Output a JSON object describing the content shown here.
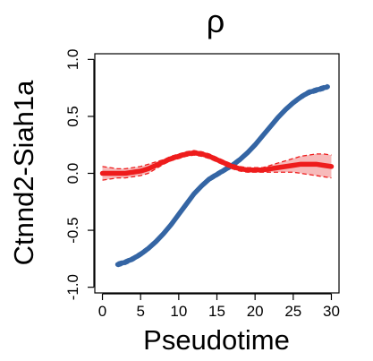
{
  "chart_data": {
    "type": "line",
    "title": "ρ",
    "xlabel": "Pseudotime",
    "ylabel": "Ctnnd2-Siah1a",
    "xlim": [
      -1,
      31
    ],
    "ylim": [
      -1.05,
      1.05
    ],
    "xticks": [
      "0",
      "5",
      "10",
      "15",
      "20",
      "25",
      "30"
    ],
    "xtick_values": [
      0,
      5,
      10,
      15,
      20,
      25,
      30
    ],
    "yticks": [
      "-1.0",
      "-0.5",
      "0.0",
      "0.5",
      "1.0"
    ],
    "ytick_values": [
      -1.0,
      -0.5,
      0.0,
      0.5,
      1.0
    ],
    "grid": false,
    "series": [
      {
        "color": "#3465a4",
        "band_color": "#8fb4d9",
        "x": [
          2,
          3,
          4,
          5,
          6,
          7,
          8,
          9,
          10,
          11,
          12,
          13,
          14,
          15,
          16,
          17,
          18,
          19,
          20,
          21,
          22,
          23,
          24,
          25,
          26,
          27,
          28,
          29,
          29.5
        ],
        "y": [
          -0.8,
          -0.78,
          -0.75,
          -0.71,
          -0.66,
          -0.6,
          -0.53,
          -0.45,
          -0.36,
          -0.27,
          -0.18,
          -0.11,
          -0.05,
          -0.01,
          0.03,
          0.07,
          0.12,
          0.18,
          0.25,
          0.33,
          0.41,
          0.49,
          0.56,
          0.62,
          0.67,
          0.71,
          0.73,
          0.75,
          0.76
        ],
        "lower": [
          -0.82,
          -0.8,
          -0.77,
          -0.73,
          -0.68,
          -0.62,
          -0.55,
          -0.47,
          -0.38,
          -0.29,
          -0.2,
          -0.13,
          -0.07,
          -0.03,
          0.01,
          0.05,
          0.1,
          0.16,
          0.23,
          0.31,
          0.39,
          0.47,
          0.54,
          0.6,
          0.65,
          0.69,
          0.71,
          0.73,
          0.74
        ],
        "upper": [
          -0.78,
          -0.76,
          -0.73,
          -0.69,
          -0.64,
          -0.58,
          -0.51,
          -0.43,
          -0.34,
          -0.25,
          -0.16,
          -0.09,
          -0.03,
          0.01,
          0.05,
          0.09,
          0.14,
          0.2,
          0.27,
          0.35,
          0.43,
          0.51,
          0.58,
          0.64,
          0.69,
          0.73,
          0.75,
          0.77,
          0.78
        ]
      },
      {
        "color": "#ee1c1c",
        "band_color": "#f4a3a3",
        "x": [
          0,
          1,
          2,
          3,
          4,
          5,
          6,
          7,
          8,
          9,
          10,
          11,
          12,
          13,
          14,
          15,
          16,
          17,
          18,
          19,
          20,
          21,
          22,
          23,
          24,
          25,
          26,
          27,
          28,
          29,
          30
        ],
        "y": [
          0.0,
          0.0,
          0.0,
          0.0,
          0.01,
          0.02,
          0.04,
          0.07,
          0.1,
          0.13,
          0.15,
          0.17,
          0.18,
          0.17,
          0.15,
          0.12,
          0.09,
          0.06,
          0.04,
          0.03,
          0.03,
          0.03,
          0.04,
          0.05,
          0.06,
          0.07,
          0.08,
          0.08,
          0.08,
          0.07,
          0.06
        ],
        "lower": [
          -0.06,
          -0.05,
          -0.04,
          -0.04,
          -0.03,
          -0.02,
          0.0,
          0.04,
          0.08,
          0.11,
          0.13,
          0.15,
          0.16,
          0.15,
          0.13,
          0.1,
          0.07,
          0.04,
          0.02,
          0.01,
          0.01,
          0.01,
          0.01,
          0.01,
          0.01,
          0.01,
          0.0,
          -0.01,
          -0.02,
          -0.03,
          -0.04
        ],
        "upper": [
          0.06,
          0.05,
          0.04,
          0.04,
          0.05,
          0.06,
          0.08,
          0.1,
          0.12,
          0.15,
          0.17,
          0.19,
          0.2,
          0.19,
          0.17,
          0.14,
          0.11,
          0.08,
          0.06,
          0.05,
          0.05,
          0.05,
          0.07,
          0.09,
          0.11,
          0.13,
          0.15,
          0.16,
          0.17,
          0.17,
          0.16
        ]
      }
    ]
  }
}
